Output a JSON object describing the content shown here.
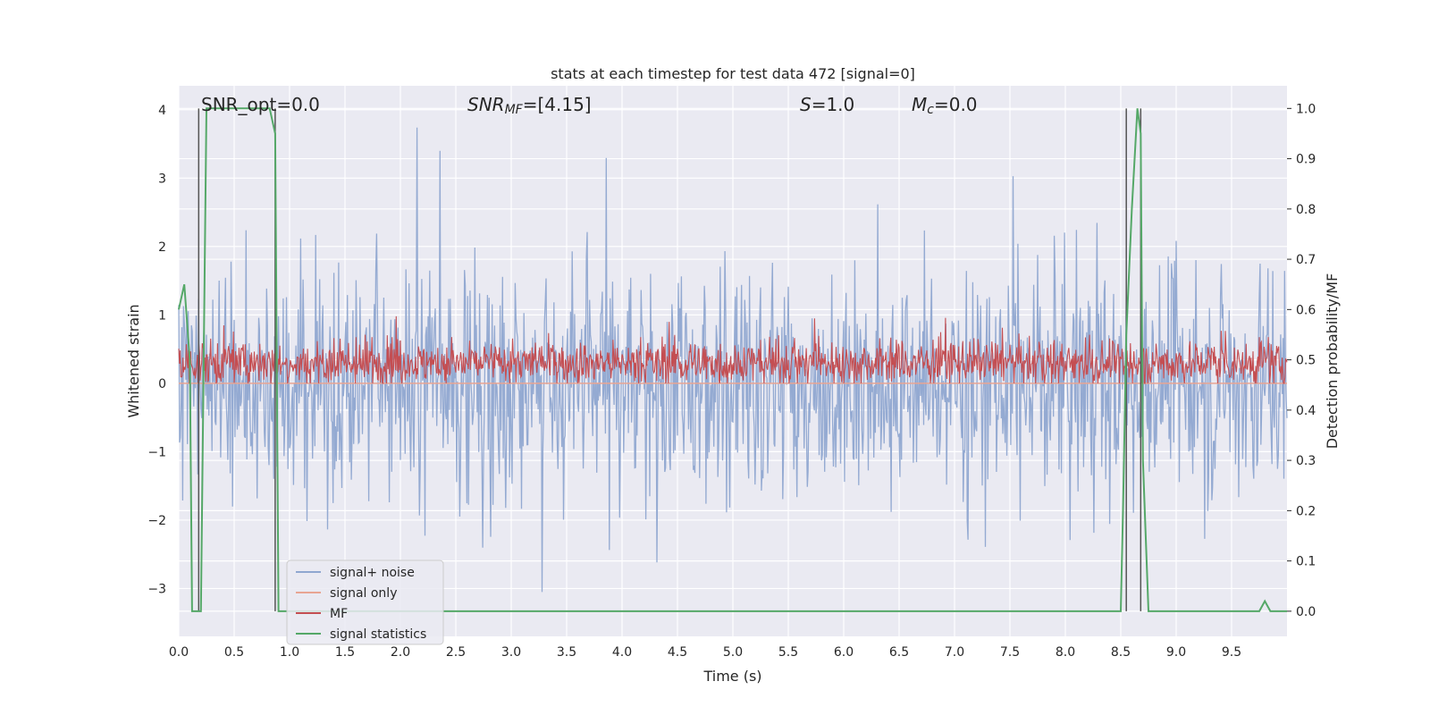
{
  "chart_data": {
    "type": "line",
    "title": "stats at each timestep for test data 472 [signal=0]",
    "xlabel": "Time (s)",
    "ylabel_left": "Whitened strain",
    "ylabel_right": "Detection probability/MF",
    "xlim": [
      0.0,
      10.0
    ],
    "ylim_left": [
      -3.7,
      4.35
    ],
    "ylim_right": [
      -0.05,
      1.045
    ],
    "x_ticks": [
      "0.0",
      "0.5",
      "1.0",
      "1.5",
      "2.0",
      "2.5",
      "3.0",
      "3.5",
      "4.0",
      "4.5",
      "5.0",
      "5.5",
      "6.0",
      "6.5",
      "7.0",
      "7.5",
      "8.0",
      "8.5",
      "9.0",
      "9.5"
    ],
    "y_ticks_left": [
      "−3",
      "−2",
      "−1",
      "0",
      "1",
      "2",
      "3",
      "4"
    ],
    "y_ticks_right": [
      "0.0",
      "0.1",
      "0.2",
      "0.3",
      "0.4",
      "0.5",
      "0.6",
      "0.7",
      "0.8",
      "0.9",
      "1.0"
    ],
    "grid": true,
    "legend_position": "lower-left",
    "annotations": {
      "snr_opt": "SNR_opt=0.0",
      "snr_mf_label": "SNR",
      "snr_mf_sub": "MF",
      "snr_mf_value": "=[4.15]",
      "s_label": "S",
      "s_value": "=1.0",
      "mc_label": "M",
      "mc_sub": "c",
      "mc_value": "=0.0"
    },
    "series": [
      {
        "name": "signal+ noise",
        "axis": "left",
        "color": "#8fa7d0",
        "envelope": {
          "mean": 0.0,
          "typical_amplitude": 1.5,
          "max": 4.05,
          "min": -3.35
        }
      },
      {
        "name": "signal only",
        "axis": "left",
        "color": "#e8a593",
        "values_constant": 0.0
      },
      {
        "name": "MF",
        "axis": "left",
        "color": "#c44e52",
        "envelope": {
          "mean": 0.3,
          "min": 0.0,
          "typical_max": 0.65,
          "max": 0.98
        }
      },
      {
        "name": "signal statistics",
        "axis": "right",
        "color": "#55a868",
        "x": [
          0.0,
          0.05,
          0.1,
          0.12,
          0.15,
          0.2,
          0.25,
          0.3,
          0.5,
          0.75,
          0.82,
          0.87,
          0.9,
          0.95,
          1.0,
          2.0,
          3.0,
          4.0,
          5.0,
          6.0,
          7.0,
          8.0,
          8.5,
          8.52,
          8.55,
          8.6,
          8.65,
          8.68,
          8.7,
          8.75,
          9.0,
          9.5,
          9.75,
          9.8,
          9.85,
          10.0
        ],
        "y": [
          0.6,
          0.65,
          0.5,
          0.0,
          0.0,
          0.0,
          1.0,
          1.0,
          1.0,
          1.0,
          1.0,
          0.95,
          0.0,
          0.0,
          0.0,
          0.0,
          0.0,
          0.0,
          0.0,
          0.0,
          0.0,
          0.0,
          0.0,
          0.2,
          0.55,
          0.8,
          1.0,
          0.95,
          0.3,
          0.0,
          0.0,
          0.0,
          0.0,
          0.02,
          0.0,
          0.0
        ]
      }
    ],
    "vertical_lines_x": [
      0.18,
      0.87,
      8.55,
      8.68
    ],
    "vertical_lines_color": "#555555"
  }
}
